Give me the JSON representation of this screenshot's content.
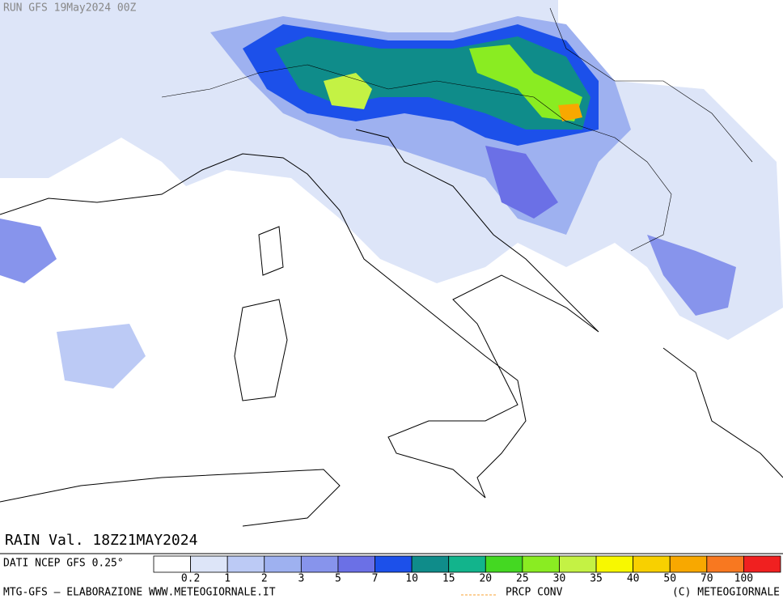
{
  "header": {
    "run": "RUN GFS 19May2024 00Z"
  },
  "map": {
    "valid": "RAIN Val. 18Z21MAY2024"
  },
  "legend": {
    "colors": [
      "#ffffff",
      "#dde5f8",
      "#bccaf5",
      "#9eb1f0",
      "#8794ec",
      "#6b70e6",
      "#1c50ea",
      "#0f8c8a",
      "#12b48c",
      "#44d822",
      "#8aec22",
      "#c4f244",
      "#f8f800",
      "#f8d000",
      "#f8a800",
      "#f87820",
      "#f02020"
    ],
    "thresholds": [
      0.2,
      1,
      2,
      3,
      5,
      7,
      10,
      15,
      20,
      25,
      30,
      35,
      40,
      50,
      70,
      100
    ]
  },
  "footer": {
    "source": "DATI NCEP GFS 0.25°",
    "credit": "MTG-GFS — ELABORAZIONE WWW.METEOGIORNALE.IT",
    "conv": "PRCP CONV",
    "copyright": "(C) METEOGIORNALE"
  }
}
